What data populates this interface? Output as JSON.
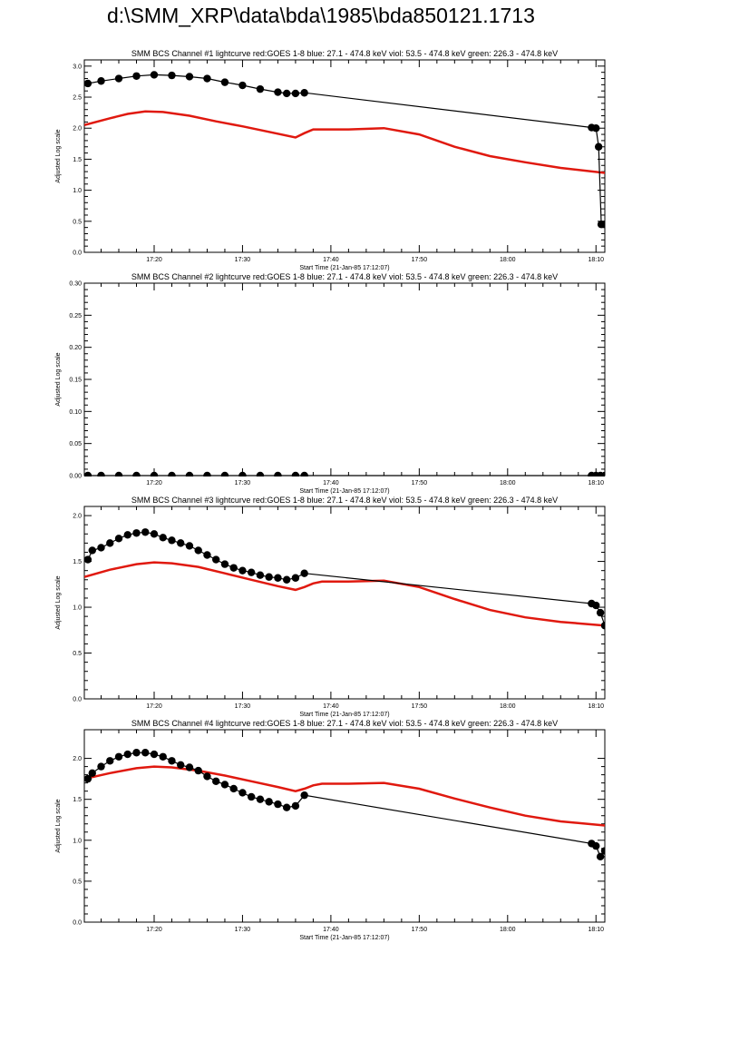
{
  "page_title": "d:\\SMM_XRP\\data\\bda\\1985\\bda850121.1713",
  "colors": {
    "goes": "#e0190f",
    "bcs": "#000000"
  },
  "chart_data": [
    {
      "type": "line",
      "title": "SMM BCS Channel #1 lightcurve  red:GOES 1-8  blue: 27.1 - 474.8 keV  viol: 53.5 - 474.8 keV  green: 226.3 - 474.8 keV",
      "xlabel": "Start Time (21-Jan-85 17:12:07)",
      "ylabel": "Adjusted Log scale",
      "xlim": [
        12.1,
        71.0
      ],
      "ylim": [
        0.0,
        3.1
      ],
      "x_ticks": [
        20,
        30,
        40,
        50,
        60,
        70
      ],
      "x_tick_labels": [
        "17:20",
        "17:30",
        "17:40",
        "17:50",
        "18:00",
        "18:10"
      ],
      "y_ticks": [
        0,
        0.5,
        1.0,
        1.5,
        2.0,
        2.5,
        3.0
      ],
      "y_tick_labels": [
        "0.0",
        "0.5",
        "1.0",
        "1.5",
        "2.0",
        "2.5",
        "3.0"
      ],
      "grid": false,
      "series": [
        {
          "color": "#e0190f",
          "marker": "none",
          "x": [
            12.1,
            15,
            17,
            19,
            21,
            24,
            27,
            30,
            33,
            36,
            37,
            38,
            39,
            42,
            46,
            50,
            54,
            58,
            62,
            66,
            71
          ],
          "y": [
            2.05,
            2.16,
            2.23,
            2.27,
            2.26,
            2.2,
            2.11,
            2.03,
            1.94,
            1.85,
            1.92,
            1.98,
            1.98,
            1.98,
            2.0,
            1.9,
            1.7,
            1.55,
            1.45,
            1.36,
            1.28
          ]
        },
        {
          "color": "#000000",
          "marker": "circle",
          "x": [
            12.5,
            14,
            16,
            18,
            20,
            22,
            24,
            26,
            28,
            30,
            32,
            34,
            35,
            36,
            37,
            69.5,
            70,
            70.3,
            70.6,
            71
          ],
          "y": [
            2.72,
            2.76,
            2.8,
            2.84,
            2.86,
            2.85,
            2.83,
            2.8,
            2.74,
            2.69,
            2.63,
            2.58,
            2.56,
            2.56,
            2.57,
            2.01,
            2.0,
            1.7,
            0.45,
            0.45
          ]
        }
      ]
    },
    {
      "type": "line",
      "title": "SMM BCS Channel #2 lightcurve  red:GOES 1-8  blue: 27.1 - 474.8 keV  viol: 53.5 - 474.8 keV  green: 226.3 - 474.8 keV",
      "xlabel": "Start Time (21-Jan-85 17:12:07)",
      "ylabel": "Adjusted Log scale",
      "xlim": [
        12.1,
        71.0
      ],
      "ylim": [
        0.0,
        0.3
      ],
      "x_ticks": [
        20,
        30,
        40,
        50,
        60,
        70
      ],
      "x_tick_labels": [
        "17:20",
        "17:30",
        "17:40",
        "17:50",
        "18:00",
        "18:10"
      ],
      "y_ticks": [
        0,
        0.05,
        0.1,
        0.15,
        0.2,
        0.25,
        0.3
      ],
      "y_tick_labels": [
        "0.00",
        "0.05",
        "0.10",
        "0.15",
        "0.20",
        "0.25",
        "0.30"
      ],
      "grid": false,
      "series": [
        {
          "color": "#000000",
          "marker": "circle",
          "x": [
            12.5,
            14,
            16,
            18,
            20,
            22,
            24,
            26,
            28,
            30,
            32,
            34,
            36,
            37,
            69.5,
            70,
            70.5,
            71
          ],
          "y": [
            0,
            0,
            0,
            0,
            0,
            0,
            0,
            0,
            0,
            0,
            0,
            0,
            0,
            0,
            0,
            0,
            0,
            0
          ]
        }
      ]
    },
    {
      "type": "line",
      "title": "SMM BCS Channel #3 lightcurve  red:GOES 1-8  blue: 27.1 - 474.8 keV  viol: 53.5 - 474.8 keV  green: 226.3 - 474.8 keV",
      "xlabel": "Start Time (21-Jan-85 17:12:07)",
      "ylabel": "Adjusted Log scale",
      "xlim": [
        12.1,
        71.0
      ],
      "ylim": [
        0.0,
        2.1
      ],
      "x_ticks": [
        20,
        30,
        40,
        50,
        60,
        70
      ],
      "x_tick_labels": [
        "17:20",
        "17:30",
        "17:40",
        "17:50",
        "18:00",
        "18:10"
      ],
      "y_ticks": [
        0,
        0.5,
        1.0,
        1.5,
        2.0
      ],
      "y_tick_labels": [
        "0.0",
        "0.5",
        "1.0",
        "1.5",
        "2.0"
      ],
      "grid": false,
      "series": [
        {
          "color": "#e0190f",
          "marker": "none",
          "x": [
            12.1,
            15,
            18,
            20,
            22,
            25,
            28,
            31,
            34,
            36,
            37,
            38,
            39,
            42,
            46,
            50,
            54,
            58,
            62,
            66,
            71
          ],
          "y": [
            1.33,
            1.41,
            1.47,
            1.49,
            1.48,
            1.44,
            1.37,
            1.3,
            1.23,
            1.19,
            1.22,
            1.26,
            1.28,
            1.28,
            1.29,
            1.22,
            1.09,
            0.97,
            0.89,
            0.84,
            0.8
          ]
        },
        {
          "color": "#000000",
          "marker": "circle",
          "x": [
            12.5,
            13,
            14,
            15,
            16,
            17,
            18,
            19,
            20,
            21,
            22,
            23,
            24,
            25,
            26,
            27,
            28,
            29,
            30,
            31,
            32,
            33,
            34,
            35,
            36,
            37,
            69.5,
            70,
            70.5,
            71
          ],
          "y": [
            1.52,
            1.62,
            1.65,
            1.7,
            1.75,
            1.79,
            1.81,
            1.82,
            1.8,
            1.76,
            1.73,
            1.7,
            1.67,
            1.62,
            1.57,
            1.52,
            1.47,
            1.43,
            1.4,
            1.38,
            1.35,
            1.33,
            1.32,
            1.3,
            1.32,
            1.37,
            1.04,
            1.02,
            0.94,
            0.8
          ]
        }
      ]
    },
    {
      "type": "line",
      "title": "SMM BCS Channel #4 lightcurve  red:GOES 1-8  blue: 27.1 - 474.8 keV  viol: 53.5 - 474.8 keV  green: 226.3 - 474.8 keV",
      "xlabel": "Start Time (21-Jan-85 17:12:07)",
      "ylabel": "Adjusted Log scale",
      "xlim": [
        12.1,
        71.0
      ],
      "ylim": [
        0.0,
        2.35
      ],
      "x_ticks": [
        20,
        30,
        40,
        50,
        60,
        70
      ],
      "x_tick_labels": [
        "17:20",
        "17:30",
        "17:40",
        "17:50",
        "18:00",
        "18:10"
      ],
      "y_ticks": [
        0,
        0.5,
        1.0,
        1.5,
        2.0
      ],
      "y_tick_labels": [
        "0.0",
        "0.5",
        "1.0",
        "1.5",
        "2.0"
      ],
      "grid": false,
      "series": [
        {
          "color": "#e0190f",
          "marker": "none",
          "x": [
            12.1,
            15,
            18,
            20,
            22,
            25,
            28,
            31,
            34,
            36,
            37,
            38,
            39,
            42,
            46,
            50,
            54,
            58,
            62,
            66,
            71
          ],
          "y": [
            1.75,
            1.82,
            1.88,
            1.9,
            1.89,
            1.85,
            1.79,
            1.72,
            1.65,
            1.6,
            1.63,
            1.67,
            1.69,
            1.69,
            1.7,
            1.63,
            1.51,
            1.4,
            1.3,
            1.23,
            1.18
          ]
        },
        {
          "color": "#000000",
          "marker": "circle",
          "x": [
            12.5,
            13,
            14,
            15,
            16,
            17,
            18,
            19,
            20,
            21,
            22,
            23,
            24,
            25,
            26,
            27,
            28,
            29,
            30,
            31,
            32,
            33,
            34,
            35,
            36,
            37,
            69.5,
            70,
            70.5,
            71
          ],
          "y": [
            1.75,
            1.82,
            1.9,
            1.97,
            2.02,
            2.05,
            2.07,
            2.07,
            2.05,
            2.02,
            1.97,
            1.92,
            1.89,
            1.85,
            1.78,
            1.72,
            1.68,
            1.63,
            1.58,
            1.53,
            1.5,
            1.47,
            1.44,
            1.4,
            1.42,
            1.55,
            0.96,
            0.93,
            0.8,
            0.87
          ]
        }
      ]
    }
  ]
}
